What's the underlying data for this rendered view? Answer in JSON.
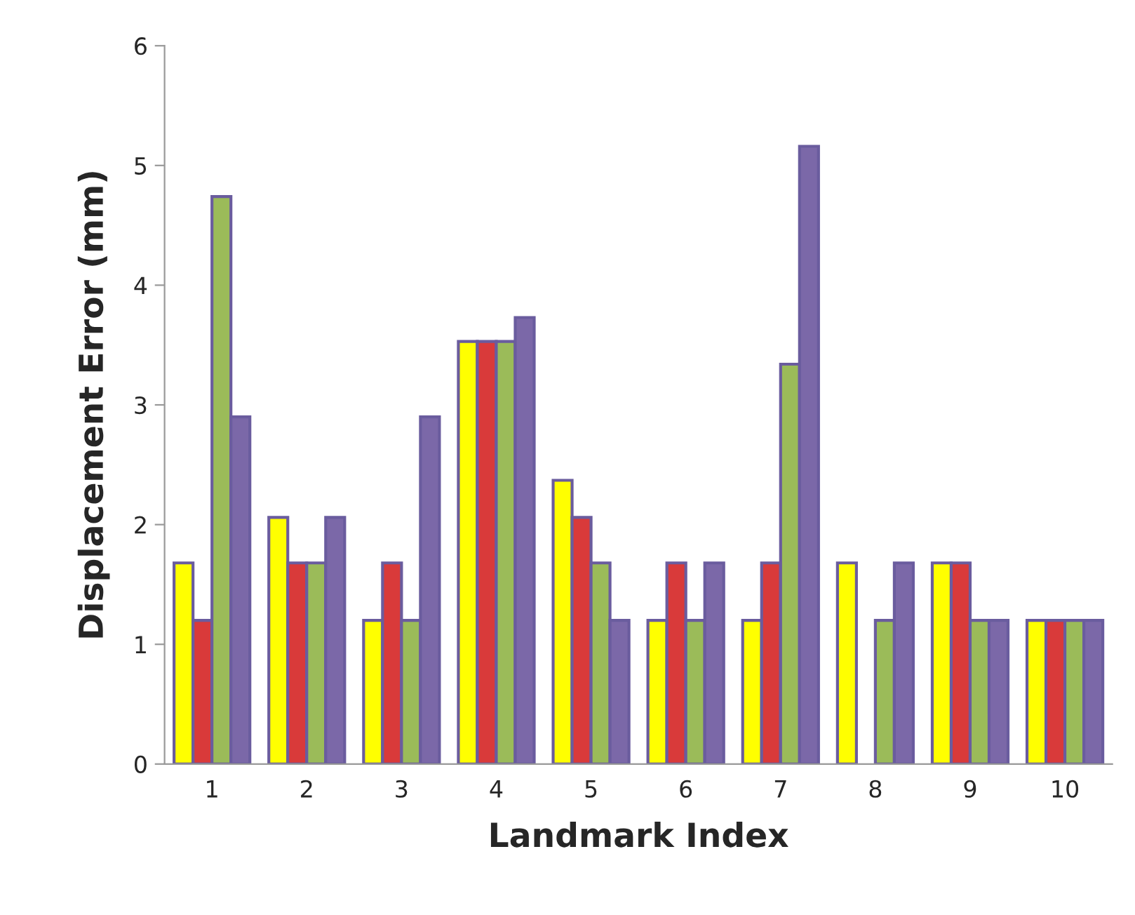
{
  "chart_data": {
    "type": "bar",
    "xlabel": "Landmark Index",
    "ylabel": "Displacement Error (mm)",
    "categories": [
      "1",
      "2",
      "3",
      "4",
      "5",
      "6",
      "7",
      "8",
      "9",
      "10"
    ],
    "series": [
      {
        "color": "#ffff00",
        "values": [
          1.68,
          2.06,
          1.2,
          3.53,
          2.37,
          1.2,
          1.2,
          1.68,
          1.68,
          1.2
        ]
      },
      {
        "color": "#d93a3a",
        "values": [
          1.2,
          1.68,
          1.68,
          3.53,
          2.06,
          1.68,
          1.68,
          null,
          1.68,
          1.2
        ]
      },
      {
        "color": "#9bbb59",
        "values": [
          4.74,
          1.68,
          1.2,
          3.53,
          1.68,
          1.2,
          3.34,
          1.2,
          1.2,
          1.2
        ]
      },
      {
        "color": "#7b68a8",
        "values": [
          2.9,
          2.06,
          2.9,
          3.73,
          1.2,
          1.68,
          5.16,
          1.68,
          1.2,
          1.2
        ]
      }
    ],
    "ylim": [
      0,
      6
    ],
    "yticks": [
      0,
      1,
      2,
      3,
      4,
      5,
      6
    ],
    "grid": false,
    "legend": false
  }
}
